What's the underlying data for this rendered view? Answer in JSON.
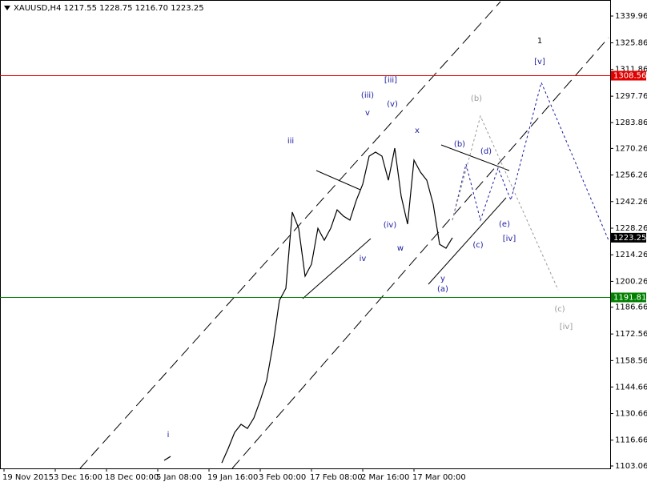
{
  "chart_data": {
    "type": "line",
    "title": "XAUUSD,H4  1217.55 1228.75 1216.70 1223.25",
    "categories": [
      "19 Nov 2015",
      null,
      null,
      null,
      null,
      null,
      null,
      null,
      "3 Dec 16:00",
      null,
      null,
      null,
      null,
      null,
      null,
      null,
      "18 Dec 00:00",
      null,
      null,
      null,
      null,
      null,
      null,
      null,
      "5 Jan 08:00",
      null,
      null,
      null,
      null,
      null,
      null,
      null,
      "19 Jan 16:00",
      null,
      null,
      null,
      null,
      null,
      null,
      null,
      "3 Feb 00:00",
      null,
      null,
      null,
      null,
      null,
      null,
      null,
      "17 Feb 08:00",
      null,
      null,
      null,
      null,
      null,
      null,
      null,
      "2 Mar 16:00",
      null,
      null,
      null,
      null,
      null,
      null,
      null,
      "17 Mar 00:00",
      null,
      null,
      null,
      null,
      null,
      null
    ],
    "series": [
      {
        "name": "XAUUSD",
        "color": "#000000",
        "values": [
          null,
          null,
          null,
          null,
          null,
          null,
          null,
          null,
          null,
          null,
          null,
          null,
          null,
          null,
          null,
          null,
          null,
          null,
          null,
          null,
          null,
          null,
          null,
          null,
          null,
          1106.0,
          1108.1,
          null,
          null,
          null,
          null,
          null,
          null,
          null,
          1104.7,
          1112.3,
          1120.7,
          1125.0,
          1122.8,
          1128.3,
          1137.6,
          1148.1,
          1167.1,
          1190.3,
          1196.6,
          1236.7,
          1228.2,
          1203.0,
          1209.3,
          1228.2,
          1221.9,
          1228.2,
          1237.9,
          1234.6,
          1232.5,
          1243.0,
          1251.4,
          1266.2,
          1268.3,
          1266.2,
          1253.5,
          1270.4,
          1245.1,
          1230.4,
          1264.1,
          1257.8,
          1253.5,
          1240.9,
          1219.8,
          1217.7,
          1223.25
        ]
      }
    ],
    "ylim": [
      1101.8,
      1348.4
    ],
    "yticks": [
      1103.06,
      1116.66,
      1130.66,
      1144.66,
      1158.56,
      1172.56,
      1186.66,
      1200.26,
      1214.26,
      1228.26,
      1242.26,
      1256.26,
      1270.26,
      1283.86,
      1297.76,
      1311.86,
      1325.86,
      1339.96
    ],
    "hlines": [
      {
        "value": 1308.56,
        "color": "#e00000"
      },
      {
        "value": 1191.81,
        "color": "#008000"
      }
    ],
    "last_price": {
      "value": 1223.25,
      "color": "#000000"
    },
    "annotations": [
      {
        "text": "i",
        "color": "#1a1aa0"
      },
      {
        "text": "iii",
        "color": "#1a1aa0"
      },
      {
        "text": "v",
        "color": "#1a1aa0"
      },
      {
        "text": "(iii)",
        "color": "#1a1aa0"
      },
      {
        "text": "[iii]",
        "color": "#1a1aa0"
      },
      {
        "text": "(v)",
        "color": "#1a1aa0"
      },
      {
        "text": "x",
        "color": "#1a1aa0"
      },
      {
        "text": "(iv)",
        "color": "#1a1aa0"
      },
      {
        "text": "iv",
        "color": "#1a1aa0"
      },
      {
        "text": "w",
        "color": "#1a1aa0"
      },
      {
        "text": "y",
        "color": "#1a1aa0"
      },
      {
        "text": "(a)",
        "color": "#1a1aa0"
      },
      {
        "text": "(b)",
        "color": "#1a1aa0"
      },
      {
        "text": "(d)",
        "color": "#1a1aa0"
      },
      {
        "text": "(c)",
        "color": "#1a1aa0"
      },
      {
        "text": "(e)",
        "color": "#1a1aa0"
      },
      {
        "text": "[iv]",
        "color": "#1a1aa0"
      },
      {
        "text": "(b)",
        "color": "#999999"
      },
      {
        "text": "(c)",
        "color": "#999999"
      },
      {
        "text": "[iv]",
        "color": "#999999"
      },
      {
        "text": "1",
        "color": "#000000"
      },
      {
        "text": "[v]",
        "color": "#1a1aa0"
      }
    ]
  }
}
